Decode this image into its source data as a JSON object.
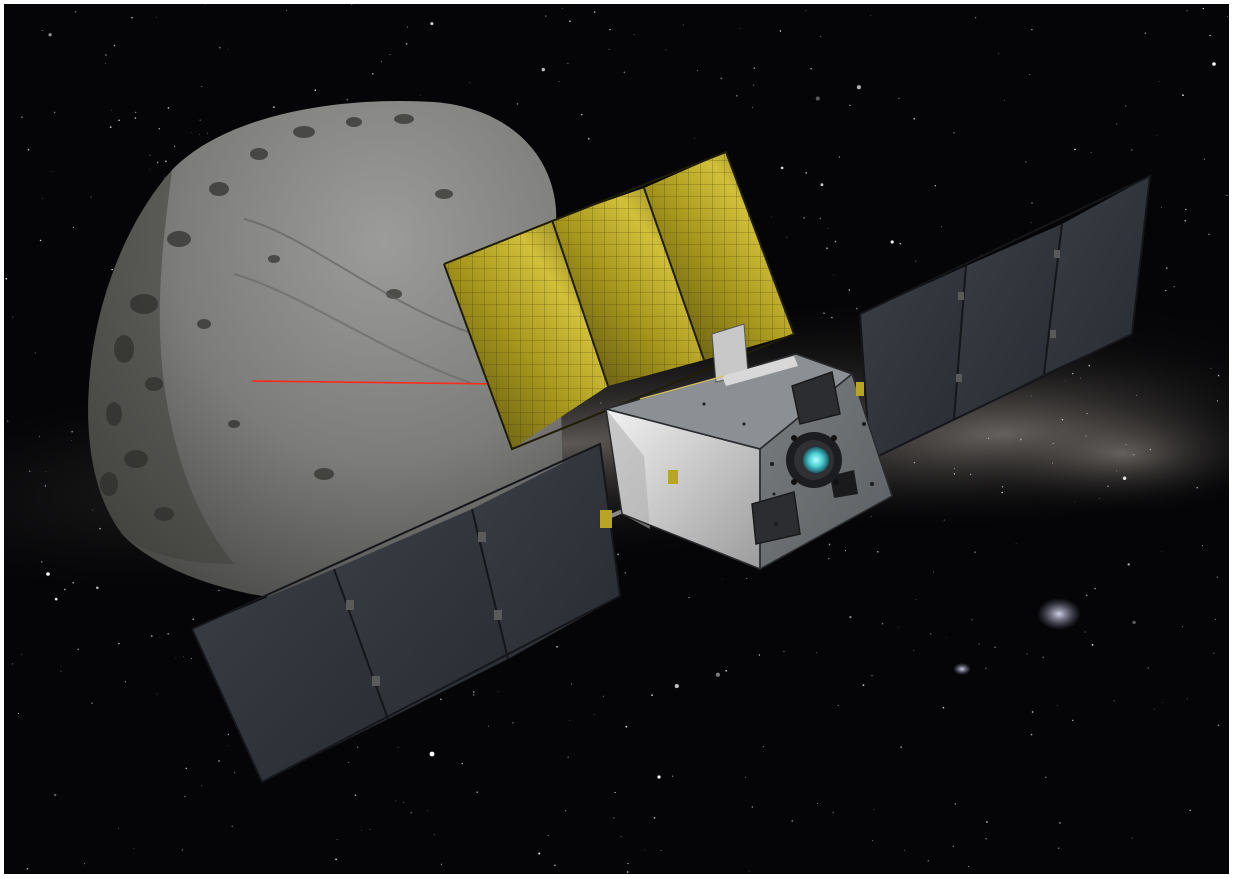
{
  "scene": {
    "subject": "spacecraft-approaching-asteroid",
    "colors": {
      "space": "#050507",
      "milky_way": "#8f8a86",
      "asteroid": "#7a7a78",
      "asteroid_shadow": "#3a3a38",
      "gold_panel": "#b8a524",
      "dark_panel": "#3a3c44",
      "bus_body": "#6c6f73",
      "bus_light_side": "#d8d8d8",
      "lens_glow": "#5ad8dc",
      "laser": "#ff2a1a"
    },
    "icons": {
      "asteroid": "asteroid-icon",
      "spacecraft": "spacecraft-icon",
      "laser": "laser-beam-icon",
      "camera": "camera-lens-icon"
    }
  }
}
